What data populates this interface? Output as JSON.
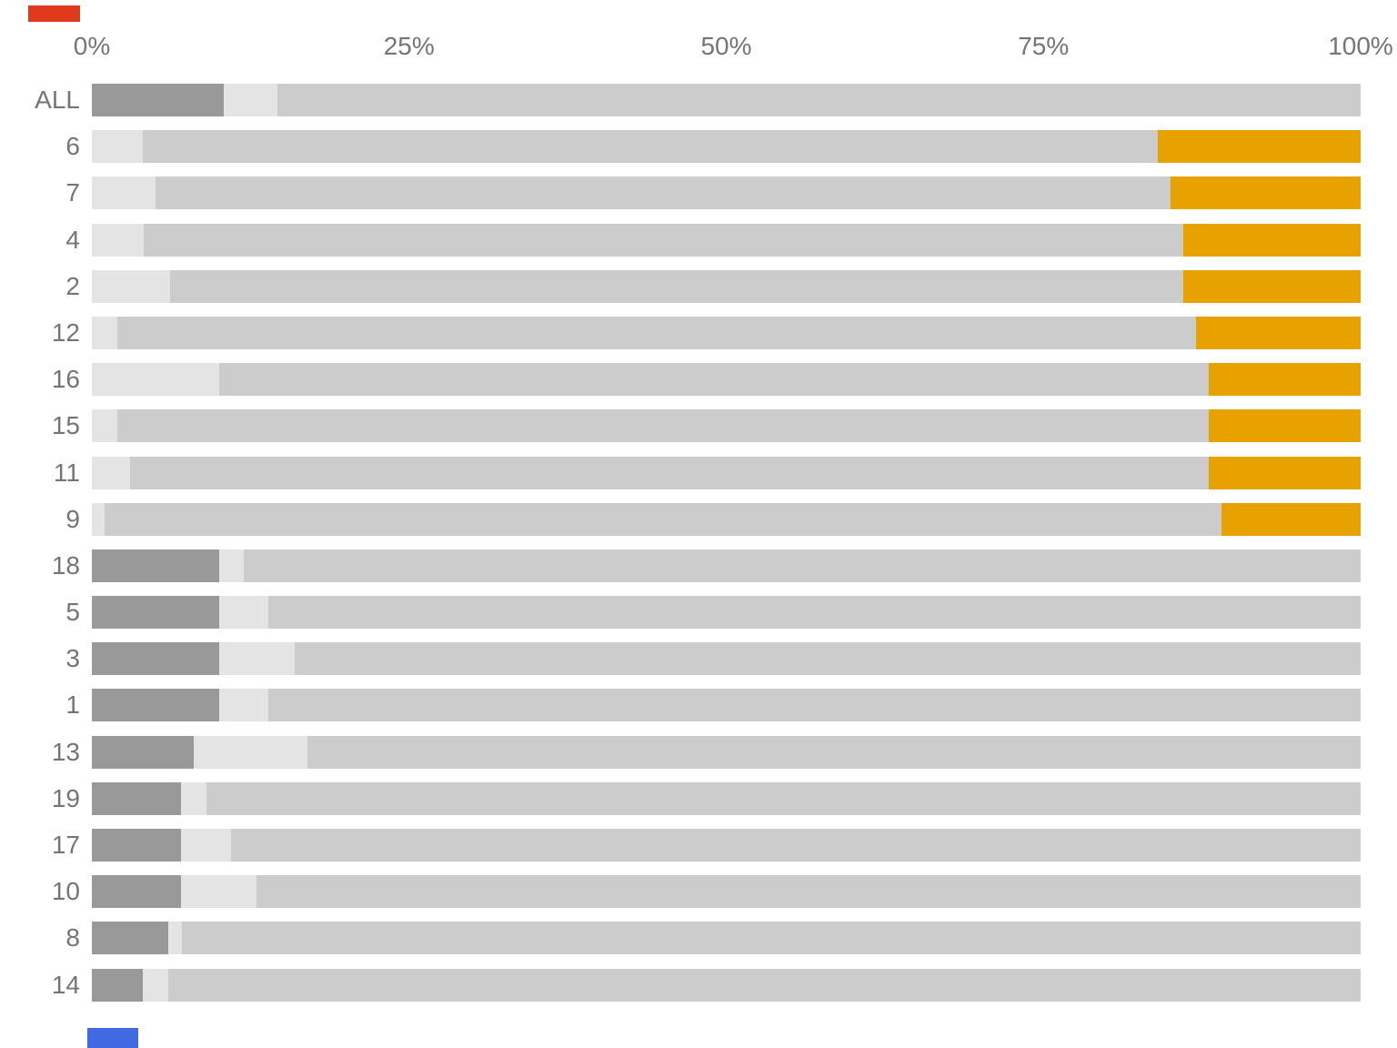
{
  "chart_data": {
    "type": "bar",
    "orientation": "horizontal",
    "stacked": true,
    "title": "",
    "xlabel": "",
    "ylabel": "",
    "xlim": [
      0,
      100
    ],
    "grid": false,
    "legend": null,
    "x_ticks": [
      "0%",
      "25%",
      "50%",
      "75%",
      "100%"
    ],
    "series_order": [
      "dark_gray",
      "light_gray",
      "mid_gray",
      "orange"
    ],
    "colors": {
      "dark_gray": "#999999",
      "light_gray": "#e4e4e4",
      "mid_gray": "#cccccc",
      "orange": "#e8a200"
    },
    "rows": [
      {
        "label": "ALL",
        "dark_gray": 10.4,
        "light_gray": 4.2,
        "mid_gray": 85.4,
        "orange": 0
      },
      {
        "label": "6",
        "dark_gray": 0,
        "light_gray": 4.0,
        "mid_gray": 80.0,
        "orange": 16.0
      },
      {
        "label": "7",
        "dark_gray": 0,
        "light_gray": 5.0,
        "mid_gray": 80.0,
        "orange": 15.0
      },
      {
        "label": "4",
        "dark_gray": 0,
        "light_gray": 4.1,
        "mid_gray": 81.9,
        "orange": 14.0
      },
      {
        "label": "2",
        "dark_gray": 0,
        "light_gray": 6.2,
        "mid_gray": 79.8,
        "orange": 14.0
      },
      {
        "label": "12",
        "dark_gray": 0,
        "light_gray": 2.0,
        "mid_gray": 85.0,
        "orange": 13.0
      },
      {
        "label": "16",
        "dark_gray": 0,
        "light_gray": 10.0,
        "mid_gray": 78.0,
        "orange": 12.0
      },
      {
        "label": "15",
        "dark_gray": 0,
        "light_gray": 2.0,
        "mid_gray": 86.0,
        "orange": 12.0
      },
      {
        "label": "11",
        "dark_gray": 0,
        "light_gray": 3.0,
        "mid_gray": 85.0,
        "orange": 12.0
      },
      {
        "label": "9",
        "dark_gray": 0,
        "light_gray": 1.0,
        "mid_gray": 88.0,
        "orange": 11.0
      },
      {
        "label": "18",
        "dark_gray": 10.0,
        "light_gray": 2.0,
        "mid_gray": 88.0,
        "orange": 0
      },
      {
        "label": "5",
        "dark_gray": 10.0,
        "light_gray": 3.9,
        "mid_gray": 86.1,
        "orange": 0
      },
      {
        "label": "3",
        "dark_gray": 10.0,
        "light_gray": 6.0,
        "mid_gray": 84.0,
        "orange": 0
      },
      {
        "label": "1",
        "dark_gray": 10.0,
        "light_gray": 3.9,
        "mid_gray": 86.1,
        "orange": 0
      },
      {
        "label": "13",
        "dark_gray": 8.0,
        "light_gray": 9.0,
        "mid_gray": 83.0,
        "orange": 0
      },
      {
        "label": "19",
        "dark_gray": 7.0,
        "light_gray": 2.0,
        "mid_gray": 91.0,
        "orange": 0
      },
      {
        "label": "17",
        "dark_gray": 7.0,
        "light_gray": 4.0,
        "mid_gray": 89.0,
        "orange": 0
      },
      {
        "label": "10",
        "dark_gray": 7.0,
        "light_gray": 6.0,
        "mid_gray": 87.0,
        "orange": 0
      },
      {
        "label": "8",
        "dark_gray": 6.0,
        "light_gray": 1.1,
        "mid_gray": 92.9,
        "orange": 0
      },
      {
        "label": "14",
        "dark_gray": 4.0,
        "light_gray": 2.0,
        "mid_gray": 94.0,
        "orange": 0
      }
    ]
  },
  "markers": {
    "top_left_color": "#e0391e",
    "bottom_left_color": "#4169e1"
  },
  "text_color": "#757575"
}
